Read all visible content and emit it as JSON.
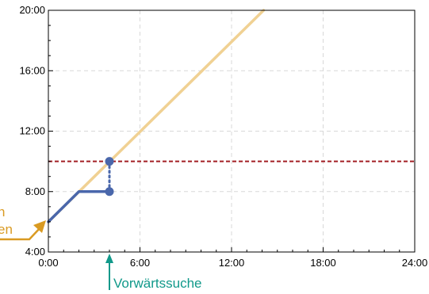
{
  "chart_data": {
    "type": "line",
    "xlim": [
      0,
      24
    ],
    "ylim": [
      4,
      20
    ],
    "x_ticks": [
      {
        "value": 0,
        "label": "0:00"
      },
      {
        "value": 6,
        "label": "6:00"
      },
      {
        "value": 12,
        "label": "12:00"
      },
      {
        "value": 18,
        "label": "18:00"
      },
      {
        "value": 24,
        "label": "24:00"
      }
    ],
    "y_ticks": [
      {
        "value": 4,
        "label": "4:00"
      },
      {
        "value": 8,
        "label": "8:00"
      },
      {
        "value": 12,
        "label": "12:00"
      },
      {
        "value": 16,
        "label": "16:00"
      },
      {
        "value": 20,
        "label": "20:00"
      }
    ],
    "grid": true,
    "series": [
      {
        "points": [
          [
            0,
            6
          ],
          [
            14.1,
            20
          ]
        ],
        "color": "#f0d193"
      },
      {
        "points": [
          [
            0,
            6
          ],
          [
            2,
            8
          ],
          [
            4,
            8
          ]
        ],
        "color": "#4a67ab"
      }
    ],
    "vertical_link": {
      "x": 4,
      "y_from": 8,
      "y_to": 10,
      "color": "#4a67ab"
    },
    "markers": [
      {
        "x": 4,
        "y": 8,
        "color": "#4a67ab"
      },
      {
        "x": 4,
        "y": 10,
        "color": "#4a67ab"
      }
    ],
    "threshold": {
      "y": 10,
      "color": "#a31f24"
    },
    "annotations": [
      {
        "text": "Vorwärtssuche",
        "x": 4,
        "color": "#11998a"
      },
      {
        "line1": "n",
        "line2": "en",
        "color": "#d99a22"
      }
    ]
  }
}
